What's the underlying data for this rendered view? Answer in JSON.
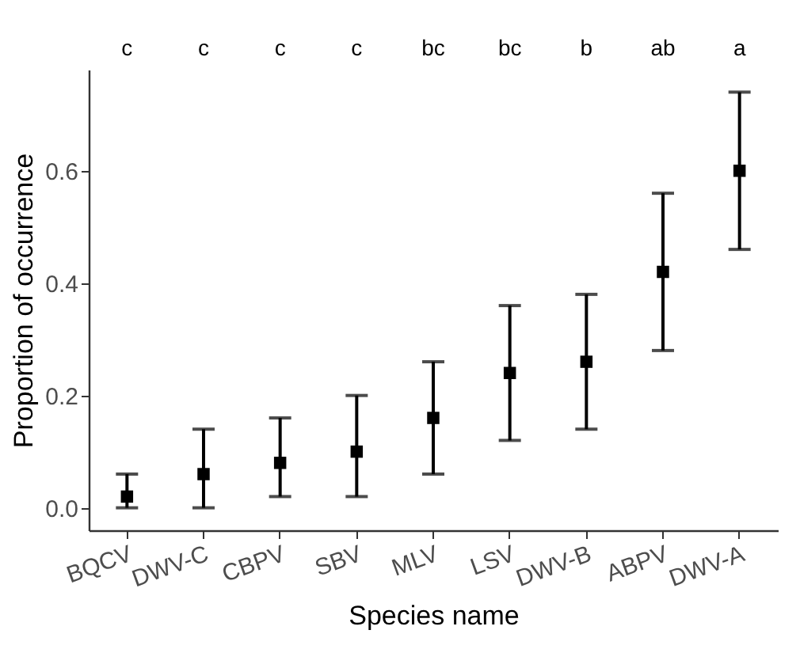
{
  "chart_data": {
    "type": "scatter",
    "xlabel": "Species name",
    "ylabel": "Proportion of occurrence",
    "categories": [
      "BQCV",
      "DWV-C",
      "CBPV",
      "SBV",
      "MLV",
      "LSV",
      "DWV-B",
      "ABPV",
      "DWV-A"
    ],
    "series": [
      {
        "color": "#000000",
        "values": [
          0.02,
          0.06,
          0.08,
          0.1,
          0.16,
          0.24,
          0.26,
          0.42,
          0.6
        ],
        "errors": [
          [
            0,
            0.06
          ],
          [
            0,
            0.14
          ],
          [
            0.02,
            0.16
          ],
          [
            0.02,
            0.2
          ],
          [
            0.06,
            0.26
          ],
          [
            0.12,
            0.36
          ],
          [
            0.14,
            0.38
          ],
          [
            0.28,
            0.56
          ],
          [
            0.46,
            0.74
          ]
        ]
      }
    ],
    "marker": "square",
    "ylim": [
      -0.04,
      0.78
    ],
    "yticks": [
      {
        "value": 0,
        "label": "0.0"
      },
      {
        "value": 0.2,
        "label": "0.2"
      },
      {
        "value": 0.4,
        "label": "0.4"
      },
      {
        "value": 0.6,
        "label": "0.6"
      }
    ],
    "grid": false,
    "annotations": [
      "c",
      "c",
      "c",
      "c",
      "bc",
      "bc",
      "b",
      "ab",
      "a"
    ]
  }
}
